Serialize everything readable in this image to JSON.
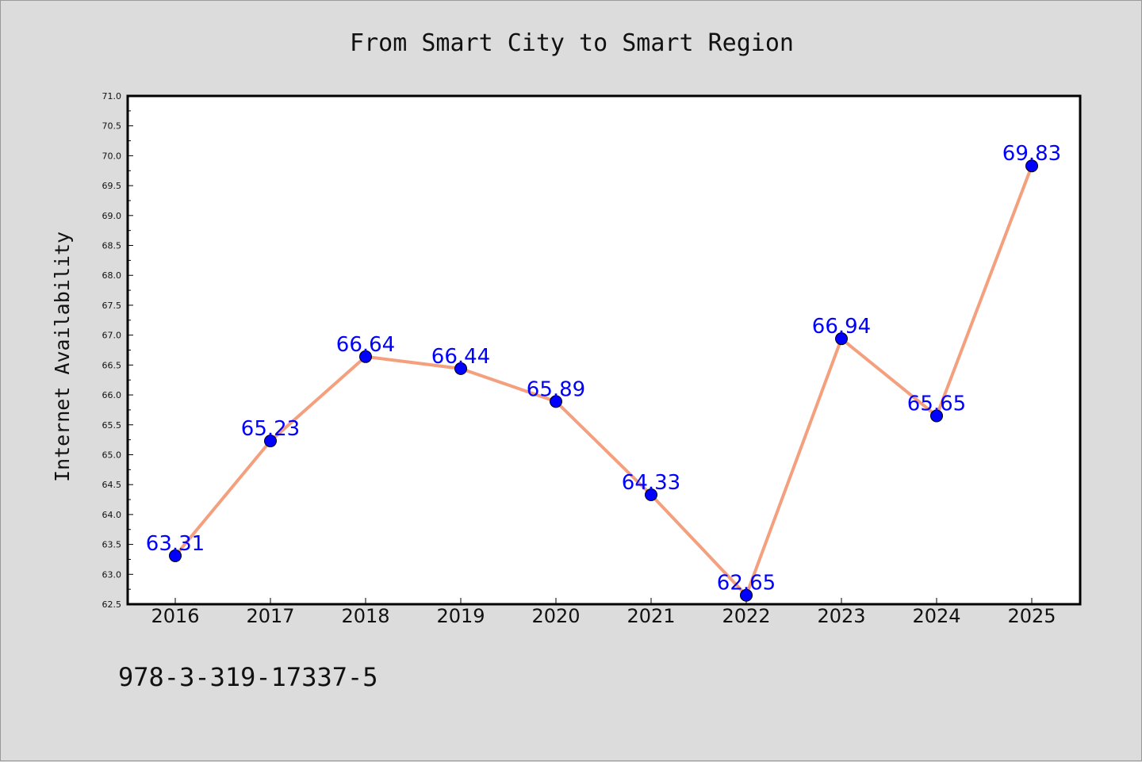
{
  "chart_data": {
    "type": "line",
    "title": "From Smart City to Smart Region",
    "xlabel": "",
    "ylabel": "Internet Availability",
    "categories": [
      "2016",
      "2017",
      "2018",
      "2019",
      "2020",
      "2021",
      "2022",
      "2023",
      "2024",
      "2025"
    ],
    "series": [
      {
        "values": [
          63.31,
          65.23,
          66.64,
          66.44,
          65.89,
          64.33,
          62.65,
          66.94,
          65.65,
          69.83
        ]
      }
    ],
    "data_labels": [
      "63.31",
      "65.23",
      "66.64",
      "66.44",
      "65.89",
      "64.33",
      "62.65",
      "66.94",
      "65.65",
      "69.83"
    ],
    "ylim": [
      62.5,
      71.0
    ],
    "yticks": [
      "62.5",
      "63.0",
      "63.5",
      "64.0",
      "64.5",
      "65.0",
      "65.5",
      "66.0",
      "66.5",
      "67.0",
      "67.5",
      "68.0",
      "68.5",
      "69.0",
      "69.5",
      "70.0",
      "70.5",
      "71.0"
    ],
    "grid": false,
    "legend": "none",
    "line_color": "#f4a07e",
    "marker_color": "#0000ff",
    "label_color": "#0000ff",
    "background_color": "#dcdcdc",
    "plot_background_color": "#ffffff"
  },
  "footer": {
    "text": "978-3-319-17337-5"
  }
}
